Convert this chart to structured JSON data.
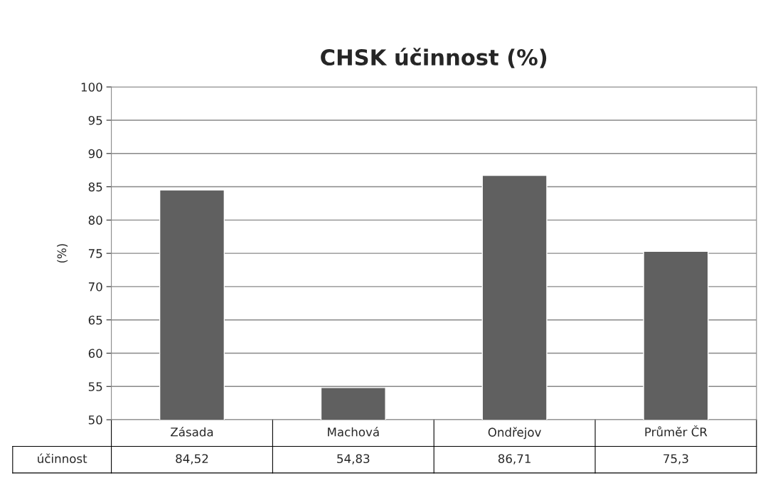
{
  "chart_data": {
    "type": "bar",
    "title": "CHSK účinnost (%)",
    "ylabel": "(%)",
    "categories": [
      "Zásada",
      "Machová",
      "Ondřejov",
      "Průměr ČR"
    ],
    "series": [
      {
        "name": "účinnost",
        "color": "#606060",
        "values": [
          84.52,
          54.83,
          86.71,
          75.3
        ],
        "value_labels": [
          "84,52",
          "54,83",
          "86,71",
          "75,3"
        ]
      }
    ],
    "ylim": [
      50,
      100
    ],
    "yticks": [
      50,
      55,
      60,
      65,
      70,
      75,
      80,
      85,
      90,
      95,
      100
    ],
    "grid": "y"
  }
}
